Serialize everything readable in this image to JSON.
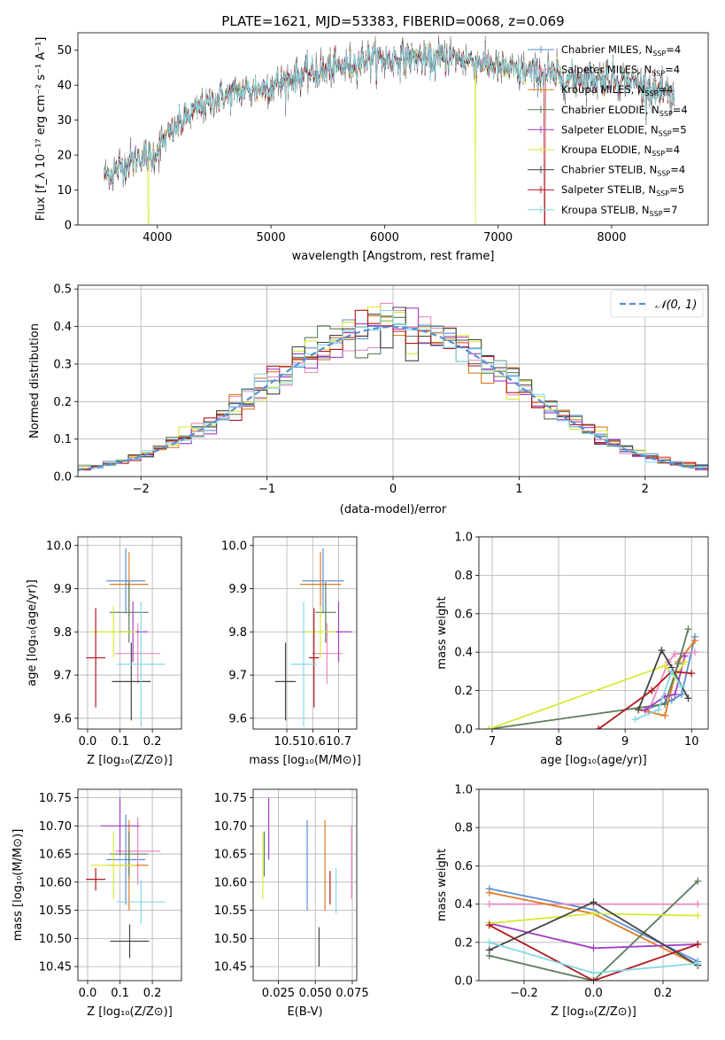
{
  "figure": {
    "title": "PLATE=1621, MJD=53383, FIBERID=0068, z=0.069"
  },
  "colors": {
    "Chabrier MILES": "#5b8fd6",
    "Salpeter MILES": "#e889c0",
    "Kroupa MILES": "#e07b22",
    "Chabrier ELODIE": "#5a7d5a",
    "Salpeter ELODIE": "#a23fc7",
    "Kroupa ELODIE": "#d9ea3a",
    "Chabrier STELIB": "#444444",
    "Salpeter STELIB": "#b0181e",
    "Kroupa STELIB": "#84d9e3",
    "gaussian": "#5b8fd6",
    "grid": "#b0b0b0"
  },
  "chart_data": [
    {
      "id": "spectrum",
      "type": "line",
      "xlabel": "wavelength [Angstrom, rest frame]",
      "ylabel": "Flux [f_λ 10⁻¹⁷ erg cm⁻² s⁻¹ A⁻¹]",
      "xlim": [
        3300,
        8850
      ],
      "ylim": [
        0,
        55
      ],
      "xticks": [
        4000,
        5000,
        6000,
        7000,
        8000
      ],
      "yticks": [
        0,
        10,
        20,
        30,
        40,
        50
      ],
      "grid": false,
      "legend_position": "right",
      "legend": [
        {
          "model": "Chabrier MILES",
          "label": "Chabrier MILES, N",
          "sub": "SSP",
          "value": "=4"
        },
        {
          "model": "Salpeter MILES",
          "label": "Salpeter MILES, N",
          "sub": "SSP",
          "value": "=4"
        },
        {
          "model": "Kroupa MILES",
          "label": "Kroupa MILES, N",
          "sub": "SSP",
          "value": "=4"
        },
        {
          "model": "Chabrier ELODIE",
          "label": "Chabrier ELODIE, N",
          "sub": "SSP",
          "value": "=4"
        },
        {
          "model": "Salpeter ELODIE",
          "label": "Salpeter ELODIE, N",
          "sub": "SSP",
          "value": "=5"
        },
        {
          "model": "Kroupa ELODIE",
          "label": "Kroupa ELODIE, N",
          "sub": "SSP",
          "value": "=4"
        },
        {
          "model": "Chabrier STELIB",
          "label": "Chabrier STELIB, N",
          "sub": "SSP",
          "value": "=4"
        },
        {
          "model": "Salpeter STELIB",
          "label": "Salpeter STELIB, N",
          "sub": "SSP",
          "value": "=5"
        },
        {
          "model": "Kroupa STELIB",
          "label": "Kroupa STELIB, N",
          "sub": "SSP",
          "value": "=7"
        }
      ],
      "continuum": [
        [
          3530,
          14
        ],
        [
          3650,
          16
        ],
        [
          3750,
          18
        ],
        [
          3880,
          20
        ],
        [
          3950,
          19
        ],
        [
          4050,
          24
        ],
        [
          4200,
          29
        ],
        [
          4350,
          33
        ],
        [
          4500,
          36
        ],
        [
          4700,
          38
        ],
        [
          4900,
          39
        ],
        [
          5100,
          41
        ],
        [
          5300,
          43
        ],
        [
          5500,
          44
        ],
        [
          5700,
          46
        ],
        [
          5880,
          48
        ],
        [
          6000,
          47
        ],
        [
          6200,
          48
        ],
        [
          6400,
          47
        ],
        [
          6560,
          48
        ],
        [
          6800,
          47
        ],
        [
          7000,
          45
        ],
        [
          7200,
          44
        ],
        [
          7400,
          43
        ],
        [
          7600,
          42
        ],
        [
          7800,
          42
        ],
        [
          8000,
          42
        ],
        [
          8200,
          41
        ],
        [
          8400,
          38
        ],
        [
          8550,
          36
        ]
      ],
      "dropouts": [
        {
          "x": 3920,
          "model": "Kroupa ELODIE"
        },
        {
          "x": 6800,
          "model": "Kroupa ELODIE"
        },
        {
          "x": 7410,
          "model": "Salpeter STELIB"
        }
      ],
      "spike": {
        "x": 6580,
        "y": 54
      }
    },
    {
      "id": "residual_hist",
      "type": "histogram",
      "xlabel": "(data-model)/error",
      "ylabel": "Normed distribution",
      "xlim": [
        -2.5,
        2.5
      ],
      "ylim": [
        0,
        0.51
      ],
      "xticks": [
        -2,
        -1,
        0,
        1,
        2
      ],
      "yticks": [
        0.0,
        0.1,
        0.2,
        0.3,
        0.4,
        0.5
      ],
      "bin_width": 0.1,
      "grid": true,
      "legend_position": "upper right",
      "reference": {
        "label": "𝒩(0, 1)",
        "mean": 0,
        "sigma": 1
      }
    },
    {
      "id": "age_vs_Z",
      "type": "errorbar",
      "xlabel": "Z [log₁₀(Z/Z⊙)]",
      "ylabel": "age  [log₁₀(age/yr)]",
      "xlim": [
        -0.03,
        0.29
      ],
      "ylim": [
        9.575,
        10.02
      ],
      "xticks": [
        0.0,
        0.1,
        0.2
      ],
      "yticks": [
        9.6,
        9.7,
        9.8,
        9.9,
        10.0
      ],
      "grid": true,
      "points": [
        {
          "model": "Chabrier MILES",
          "x": 0.118,
          "xerr": 0.06,
          "y": 9.918,
          "yerr": 0.075
        },
        {
          "model": "Salpeter MILES",
          "x": 0.155,
          "xerr": 0.07,
          "y": 9.75,
          "yerr": 0.07
        },
        {
          "model": "Kroupa MILES",
          "x": 0.128,
          "xerr": 0.06,
          "y": 9.91,
          "yerr": 0.075
        },
        {
          "model": "Chabrier ELODIE",
          "x": 0.128,
          "xerr": 0.06,
          "y": 9.845,
          "yerr": 0.07
        },
        {
          "model": "Salpeter ELODIE",
          "x": 0.14,
          "xerr": 0.045,
          "y": 9.8,
          "yerr": 0.07
        },
        {
          "model": "Kroupa ELODIE",
          "x": 0.08,
          "xerr": 0.07,
          "y": 9.8,
          "yerr": 0.06
        },
        {
          "model": "Chabrier STELIB",
          "x": 0.135,
          "xerr": 0.06,
          "y": 9.685,
          "yerr": 0.09
        },
        {
          "model": "Salpeter STELIB",
          "x": 0.025,
          "xerr": 0.03,
          "y": 9.74,
          "yerr": 0.115
        },
        {
          "model": "Kroupa STELIB",
          "x": 0.165,
          "xerr": 0.075,
          "y": 9.725,
          "yerr": 0.145
        }
      ]
    },
    {
      "id": "age_vs_mass",
      "type": "errorbar",
      "xlabel": "mass [log₁₀(M/M⊙)]",
      "ylabel": "",
      "xlim": [
        10.37,
        10.77
      ],
      "ylim": [
        9.575,
        10.02
      ],
      "xticks": [
        10.5,
        10.6,
        10.7
      ],
      "yticks": [
        9.6,
        9.7,
        9.8,
        9.9,
        10.0
      ],
      "grid": true,
      "points": [
        {
          "model": "Chabrier MILES",
          "x": 10.64,
          "xerr": 0.08,
          "y": 9.918,
          "yerr": 0.075
        },
        {
          "model": "Salpeter MILES",
          "x": 10.655,
          "xerr": 0.06,
          "y": 9.75,
          "yerr": 0.07
        },
        {
          "model": "Kroupa MILES",
          "x": 10.63,
          "xerr": 0.08,
          "y": 9.91,
          "yerr": 0.075
        },
        {
          "model": "Chabrier ELODIE",
          "x": 10.65,
          "xerr": 0.04,
          "y": 9.845,
          "yerr": 0.07
        },
        {
          "model": "Salpeter ELODIE",
          "x": 10.7,
          "xerr": 0.05,
          "y": 9.8,
          "yerr": 0.07
        },
        {
          "model": "Kroupa ELODIE",
          "x": 10.63,
          "xerr": 0.06,
          "y": 9.8,
          "yerr": 0.06
        },
        {
          "model": "Chabrier STELIB",
          "x": 10.495,
          "xerr": 0.04,
          "y": 9.685,
          "yerr": 0.09
        },
        {
          "model": "Salpeter STELIB",
          "x": 10.605,
          "xerr": 0.02,
          "y": 9.74,
          "yerr": 0.115
        },
        {
          "model": "Kroupa STELIB",
          "x": 10.565,
          "xerr": 0.05,
          "y": 9.725,
          "yerr": 0.145
        }
      ]
    },
    {
      "id": "massweight_vs_age",
      "type": "line",
      "xlabel": "age  [log₁₀(age/yr)]",
      "ylabel": "mass weight",
      "xlim": [
        6.8,
        10.25
      ],
      "ylim": [
        0,
        1.0
      ],
      "xticks": [
        7,
        8,
        9,
        10
      ],
      "yticks": [
        0.0,
        0.2,
        0.4,
        0.6,
        0.8,
        1.0
      ],
      "grid": true,
      "series": [
        {
          "model": "Chabrier MILES",
          "x": [
            9.3,
            9.7,
            9.85,
            10.05
          ],
          "y": [
            0.1,
            0.15,
            0.18,
            0.48
          ]
        },
        {
          "model": "Salpeter MILES",
          "x": [
            9.35,
            9.65,
            9.75,
            10.05
          ],
          "y": [
            0.09,
            0.35,
            0.39,
            0.4
          ]
        },
        {
          "model": "Kroupa MILES",
          "x": [
            9.2,
            9.6,
            9.8,
            10.05
          ],
          "y": [
            0.1,
            0.07,
            0.35,
            0.46
          ]
        },
        {
          "model": "Chabrier ELODIE",
          "x": [
            6.95,
            9.6,
            9.8,
            9.95
          ],
          "y": [
            0.0,
            0.13,
            0.34,
            0.52
          ]
        },
        {
          "model": "Salpeter ELODIE",
          "x": [
            9.3,
            9.6,
            9.75,
            9.9
          ],
          "y": [
            0.1,
            0.17,
            0.18,
            0.38
          ]
        },
        {
          "model": "Kroupa ELODIE",
          "x": [
            6.95,
            9.6,
            9.75,
            9.9
          ],
          "y": [
            0.0,
            0.33,
            0.27,
            0.35
          ]
        },
        {
          "model": "Chabrier STELIB",
          "x": [
            9.2,
            9.55,
            9.7,
            9.95
          ],
          "y": [
            0.1,
            0.41,
            0.32,
            0.16
          ]
        },
        {
          "model": "Salpeter STELIB",
          "x": [
            8.6,
            9.4,
            9.7,
            10.0
          ],
          "y": [
            0.0,
            0.2,
            0.3,
            0.29
          ]
        },
        {
          "model": "Kroupa STELIB",
          "x": [
            9.15,
            9.5,
            9.7,
            9.85
          ],
          "y": [
            0.05,
            0.1,
            0.3,
            0.22
          ]
        }
      ]
    },
    {
      "id": "mass_vs_Z",
      "type": "errorbar",
      "xlabel": "Z [log₁₀(Z/Z⊙)]",
      "ylabel": "mass [log₁₀(M/M⊙)]",
      "xlim": [
        -0.03,
        0.29
      ],
      "ylim": [
        10.425,
        10.765
      ],
      "xticks": [
        0.0,
        0.1,
        0.2
      ],
      "yticks": [
        10.45,
        10.5,
        10.55,
        10.6,
        10.65,
        10.7,
        10.75
      ],
      "grid": true,
      "points": [
        {
          "model": "Chabrier MILES",
          "x": 0.118,
          "xerr": 0.06,
          "y": 10.64,
          "yerr": 0.08
        },
        {
          "model": "Salpeter MILES",
          "x": 0.155,
          "xerr": 0.07,
          "y": 10.655,
          "yerr": 0.06
        },
        {
          "model": "Kroupa MILES",
          "x": 0.128,
          "xerr": 0.06,
          "y": 10.63,
          "yerr": 0.08
        },
        {
          "model": "Chabrier ELODIE",
          "x": 0.128,
          "xerr": 0.06,
          "y": 10.65,
          "yerr": 0.04
        },
        {
          "model": "Salpeter ELODIE",
          "x": 0.1,
          "xerr": 0.06,
          "y": 10.7,
          "yerr": 0.05
        },
        {
          "model": "Kroupa ELODIE",
          "x": 0.08,
          "xerr": 0.07,
          "y": 10.63,
          "yerr": 0.06
        },
        {
          "model": "Chabrier STELIB",
          "x": 0.13,
          "xerr": 0.06,
          "y": 10.495,
          "yerr": 0.03
        },
        {
          "model": "Salpeter STELIB",
          "x": 0.025,
          "xerr": 0.03,
          "y": 10.605,
          "yerr": 0.02
        },
        {
          "model": "Kroupa STELIB",
          "x": 0.165,
          "xerr": 0.075,
          "y": 10.565,
          "yerr": 0.04
        }
      ]
    },
    {
      "id": "mass_vs_ebv",
      "type": "errorbar",
      "xlabel": "E(B-V)",
      "ylabel": "",
      "xlim": [
        0.008,
        0.078
      ],
      "ylim": [
        10.425,
        10.765
      ],
      "xticks": [
        0.025,
        0.05,
        0.075
      ],
      "yticks": [
        10.45,
        10.5,
        10.55,
        10.6,
        10.65,
        10.7,
        10.75
      ],
      "grid": true,
      "points": [
        {
          "model": "Chabrier MILES",
          "x": 0.0445,
          "xerr": 0,
          "y": 10.63,
          "yerr": 0.08
        },
        {
          "model": "Salpeter MILES",
          "x": 0.0745,
          "xerr": 0,
          "y": 10.635,
          "yerr": 0.065
        },
        {
          "model": "Kroupa MILES",
          "x": 0.0565,
          "xerr": 0,
          "y": 10.63,
          "yerr": 0.08
        },
        {
          "model": "Chabrier ELODIE",
          "x": 0.0155,
          "xerr": 0,
          "y": 10.65,
          "yerr": 0.04
        },
        {
          "model": "Salpeter ELODIE",
          "x": 0.0185,
          "xerr": 0,
          "y": 10.695,
          "yerr": 0.055
        },
        {
          "model": "Kroupa ELODIE",
          "x": 0.0145,
          "xerr": 0,
          "y": 10.63,
          "yerr": 0.06
        },
        {
          "model": "Chabrier STELIB",
          "x": 0.0525,
          "xerr": 0,
          "y": 10.485,
          "yerr": 0.035
        },
        {
          "model": "Salpeter STELIB",
          "x": 0.06,
          "xerr": 0,
          "y": 10.59,
          "yerr": 0.03
        },
        {
          "model": "Kroupa STELIB",
          "x": 0.064,
          "xerr": 0,
          "y": 10.585,
          "yerr": 0.04
        }
      ]
    },
    {
      "id": "massweight_vs_Z",
      "type": "line",
      "xlabel": "Z [log₁₀(Z/Z⊙)]",
      "ylabel": "mass weight",
      "xlim": [
        -0.33,
        0.33
      ],
      "ylim": [
        0,
        1.0
      ],
      "xticks": [
        -0.2,
        0.0,
        0.2
      ],
      "yticks": [
        0.0,
        0.2,
        0.4,
        0.6,
        0.8,
        1.0
      ],
      "grid": true,
      "series": [
        {
          "model": "Chabrier MILES",
          "x": [
            -0.3,
            0.0,
            0.3
          ],
          "y": [
            0.48,
            0.37,
            0.1
          ]
        },
        {
          "model": "Salpeter MILES",
          "x": [
            -0.3,
            0.0,
            0.3
          ],
          "y": [
            0.4,
            0.4,
            0.4
          ]
        },
        {
          "model": "Kroupa MILES",
          "x": [
            -0.3,
            0.0,
            0.3
          ],
          "y": [
            0.46,
            0.35,
            0.08
          ]
        },
        {
          "model": "Chabrier ELODIE",
          "x": [
            -0.3,
            0.0,
            0.3
          ],
          "y": [
            0.13,
            0.0,
            0.52
          ]
        },
        {
          "model": "Salpeter ELODIE",
          "x": [
            -0.3,
            0.0,
            0.3
          ],
          "y": [
            0.3,
            0.17,
            0.19
          ]
        },
        {
          "model": "Kroupa ELODIE",
          "x": [
            -0.3,
            0.0,
            0.3
          ],
          "y": [
            0.3,
            0.35,
            0.34
          ]
        },
        {
          "model": "Chabrier STELIB",
          "x": [
            -0.3,
            0.0,
            0.3
          ],
          "y": [
            0.16,
            0.41,
            0.08
          ]
        },
        {
          "model": "Salpeter STELIB",
          "x": [
            -0.3,
            0.0,
            0.3
          ],
          "y": [
            0.29,
            0.0,
            0.19
          ]
        },
        {
          "model": "Kroupa STELIB",
          "x": [
            -0.3,
            0.0,
            0.3
          ],
          "y": [
            0.2,
            0.04,
            0.09
          ]
        }
      ]
    }
  ]
}
